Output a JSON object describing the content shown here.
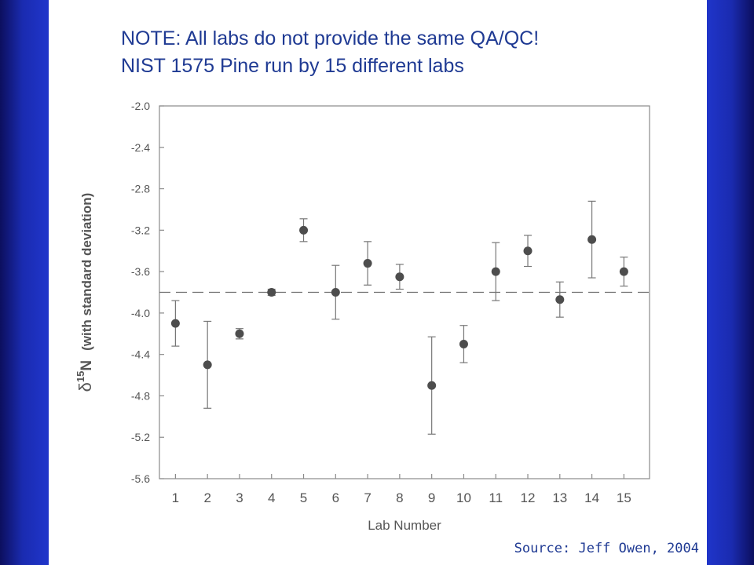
{
  "slide": {
    "title_line1": "NOTE: All labs do not provide the same QA/QC!",
    "title_line2": "NIST 1575 Pine run by 15 different labs",
    "source": "Source: Jeff Owen, 2004",
    "colors": {
      "title": "#1f3a93",
      "background": "#1f34c8",
      "panel": "#ffffff"
    }
  },
  "chart_data": {
    "type": "scatter",
    "title": "",
    "xlabel": "Lab Number",
    "ylabel_prefix": "δ",
    "ylabel_sup": "15",
    "ylabel_element": "N",
    "ylabel_suffix": "(with standard deviation)",
    "x": [
      1,
      2,
      3,
      4,
      5,
      6,
      7,
      8,
      9,
      10,
      11,
      12,
      13,
      14,
      15
    ],
    "xlim": [
      0.5,
      15.8
    ],
    "ylim": [
      -5.6,
      -2.0
    ],
    "yticks": [
      -2.0,
      -2.4,
      -2.8,
      -3.2,
      -3.6,
      -4.0,
      -4.4,
      -4.8,
      -5.2,
      -5.6
    ],
    "ytick_labels": [
      "-2.0",
      "-2.4",
      "-2.8",
      "-3.2",
      "-3.6",
      "-4.0",
      "-4.4",
      "-4.8",
      "-5.2",
      "-5.6"
    ],
    "xtick_labels": [
      "1",
      "2",
      "3",
      "4",
      "5",
      "6",
      "7",
      "8",
      "9",
      "10",
      "11",
      "12",
      "13",
      "14",
      "15"
    ],
    "series": [
      {
        "values": [
          -4.1,
          -4.5,
          -4.2,
          -3.8,
          -3.2,
          -3.8,
          -3.52,
          -3.65,
          -4.7,
          -4.3,
          -3.6,
          -3.4,
          -3.87,
          -3.29,
          -3.6
        ],
        "sd": [
          0.22,
          0.42,
          0.05,
          0.03,
          0.11,
          0.26,
          0.21,
          0.12,
          0.47,
          0.18,
          0.28,
          0.15,
          0.17,
          0.37,
          0.14
        ]
      }
    ],
    "reference_line": {
      "y": -3.8,
      "style": "dashed"
    },
    "grid": false,
    "legend": "none"
  }
}
